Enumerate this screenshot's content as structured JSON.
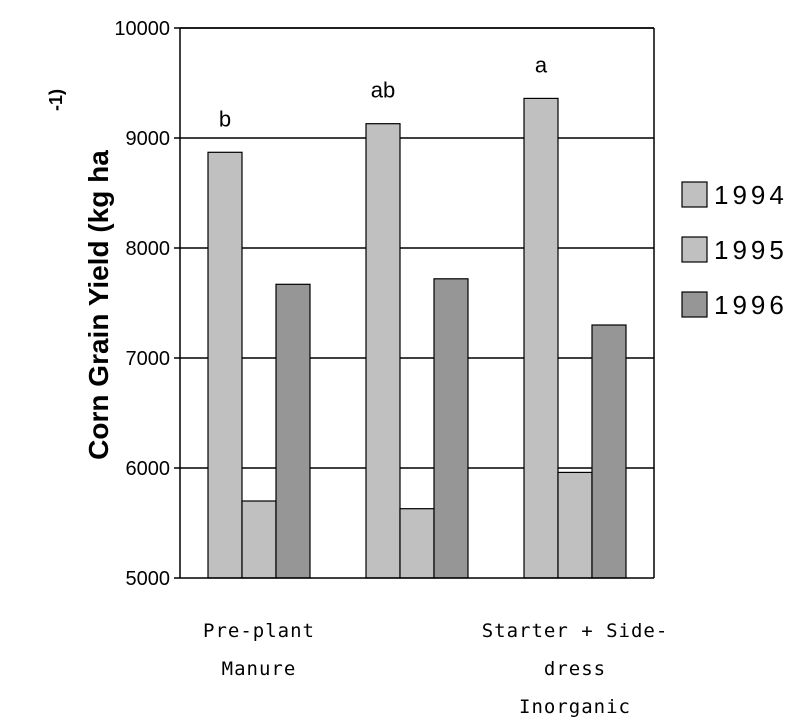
{
  "chart_data": {
    "type": "bar",
    "title": "",
    "xlabel": "",
    "ylabel": "Corn Grain Yield  (kg ha",
    "ylabel_superscript": "-1)",
    "ylim": [
      5000,
      10000
    ],
    "yticks": [
      5000,
      6000,
      7000,
      8000,
      9000,
      10000
    ],
    "grid": true,
    "legend_position": "right",
    "categories": [
      [
        "Pre-plant",
        "Manure"
      ],
      [
        "",
        ""
      ],
      [
        "Starter + Side-",
        "dress",
        "Inorganic"
      ]
    ],
    "series": [
      {
        "name": "1994",
        "values": [
          8870,
          9130,
          9360
        ],
        "color": "#c0c0c0"
      },
      {
        "name": "1995",
        "values": [
          5700,
          5630,
          5960
        ],
        "color": "#c0c0c0"
      },
      {
        "name": "1996",
        "values": [
          7670,
          7720,
          7300
        ],
        "color": "#969696"
      }
    ],
    "annotations": [
      "b",
      "ab",
      "a"
    ]
  }
}
